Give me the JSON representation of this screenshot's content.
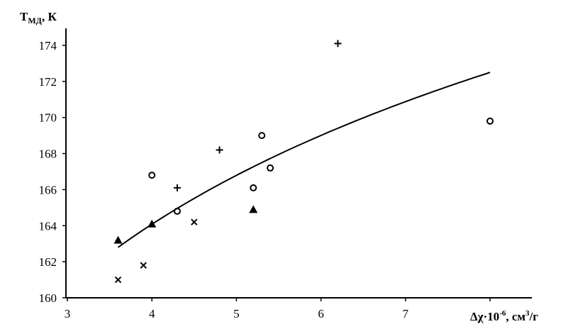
{
  "chart_data": {
    "type": "scatter",
    "title": "",
    "ylabel": {
      "main": "T",
      "sub": "МД",
      "rest": ", К"
    },
    "xlabel": {
      "main": "Δχ·10",
      "sup1": "-6",
      "mid": ", см",
      "sup2": "3",
      "rest": "/г"
    },
    "xlim": [
      3,
      8.5
    ],
    "ylim": [
      160,
      176
    ],
    "xticks": [
      3,
      4,
      5,
      6,
      7,
      8
    ],
    "xtick_labels": [
      "3",
      "4",
      "5",
      "6",
      "7",
      ""
    ],
    "yticks": [
      160,
      162,
      164,
      166,
      168,
      170,
      172,
      174
    ],
    "ytick_labels": [
      "160",
      "162",
      "164",
      "166",
      "168",
      "170",
      "172",
      "174"
    ],
    "grid": false,
    "series": [
      {
        "marker": "plus",
        "points": [
          [
            4.3,
            166.1
          ],
          [
            4.8,
            168.2
          ],
          [
            6.2,
            174.1
          ]
        ]
      },
      {
        "marker": "circle",
        "points": [
          [
            4.0,
            166.8
          ],
          [
            4.3,
            164.8
          ],
          [
            5.2,
            166.1
          ],
          [
            5.3,
            169.0
          ],
          [
            5.4,
            167.2
          ],
          [
            8.0,
            169.8
          ]
        ]
      },
      {
        "marker": "triangle",
        "points": [
          [
            3.6,
            163.2
          ],
          [
            4.0,
            164.1
          ],
          [
            5.2,
            164.9
          ]
        ]
      },
      {
        "marker": "cross",
        "points": [
          [
            3.6,
            161.0
          ],
          [
            3.9,
            161.8
          ],
          [
            4.5,
            164.2
          ]
        ]
      }
    ],
    "trend": {
      "type": "logarithmic",
      "x_range": [
        3.6,
        8.0
      ],
      "y_start": 162.8,
      "y_end": 172.5
    },
    "colors": {
      "ink": "#000000"
    }
  }
}
